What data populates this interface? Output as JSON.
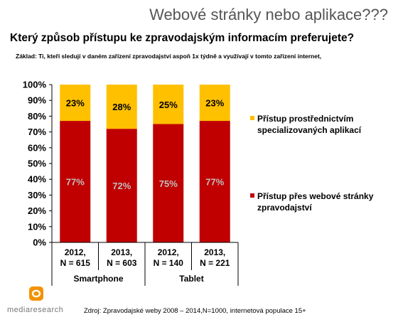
{
  "slide": {
    "title": "Webové stránky nebo aplikace???",
    "question": "Který způsob přístupu ke zpravodajským informacím preferujete?",
    "basis": "Základ: Ti, kteří sledují v daném zařízení zpravodajství aspoň 1x týdně a využívají v tomto zařízení internet,",
    "source": "Zdroj: Zpravodajské weby 2008 – 2014,N=1000, internetová populace 15+",
    "logo_text": "mediaresearch"
  },
  "legend": {
    "apps": "Přístup prostřednictvím specializovaných aplikací",
    "web": "Přístup přes webové stránky zpravodajství"
  },
  "colors": {
    "web": "#C00000",
    "apps": "#FFC000",
    "label_dark": "#A6A6A6",
    "logo": "#F39200"
  },
  "chart_data": {
    "type": "bar",
    "stacked": true,
    "percent": true,
    "categories": [
      "2012, N = 615",
      "2013, N = 603",
      "2012, N = 140",
      "2013, N = 221"
    ],
    "groups": [
      {
        "name": "Smartphone",
        "categories": [
          0,
          1
        ]
      },
      {
        "name": "Tablet",
        "categories": [
          2,
          3
        ]
      }
    ],
    "series": [
      {
        "name": "Přístup přes webové stránky zpravodajství",
        "values": [
          77,
          72,
          75,
          77
        ],
        "labels": [
          "77%",
          "72%",
          "75%",
          "77%"
        ]
      },
      {
        "name": "Přístup prostřednictvím specializovaných aplikací",
        "values": [
          23,
          28,
          25,
          23
        ],
        "labels": [
          "23%",
          "28%",
          "25%",
          "23%"
        ]
      }
    ],
    "ylim": [
      0,
      100
    ],
    "yticks": [
      "0%",
      "10%",
      "20%",
      "30%",
      "40%",
      "50%",
      "60%",
      "70%",
      "80%",
      "90%",
      "100%"
    ],
    "grid": false,
    "legend_position": "right"
  }
}
